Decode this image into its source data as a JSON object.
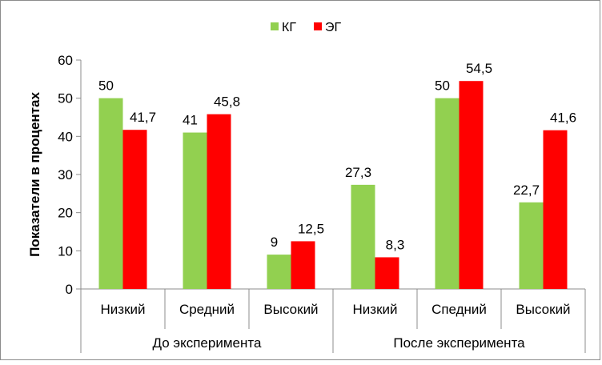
{
  "chart_data": {
    "type": "bar",
    "ylabel": "Показатели в процентах",
    "ylim": [
      0,
      60
    ],
    "yticks": [
      0,
      10,
      20,
      30,
      40,
      50,
      60
    ],
    "grid": false,
    "legend_position": "top",
    "groups": [
      {
        "label": "До эксперимента",
        "categories": [
          "Низкий",
          "Средний",
          "Высокий"
        ]
      },
      {
        "label": "После эксперимента",
        "categories": [
          "Низкий",
          "Спедний",
          "Высокий"
        ]
      }
    ],
    "series": [
      {
        "name": "КГ",
        "color": "#92d050",
        "values": [
          50,
          41,
          9,
          27.3,
          50,
          22.7
        ],
        "labels": [
          "50",
          "41",
          "9",
          "27,3",
          "50",
          "22,7"
        ]
      },
      {
        "name": "ЭГ",
        "color": "#ff0000",
        "values": [
          41.7,
          45.8,
          12.5,
          8.3,
          54.5,
          41.6
        ],
        "labels": [
          "41,7",
          "45,8",
          "12,5",
          "8,3",
          "54,5",
          "41,6"
        ]
      }
    ]
  }
}
